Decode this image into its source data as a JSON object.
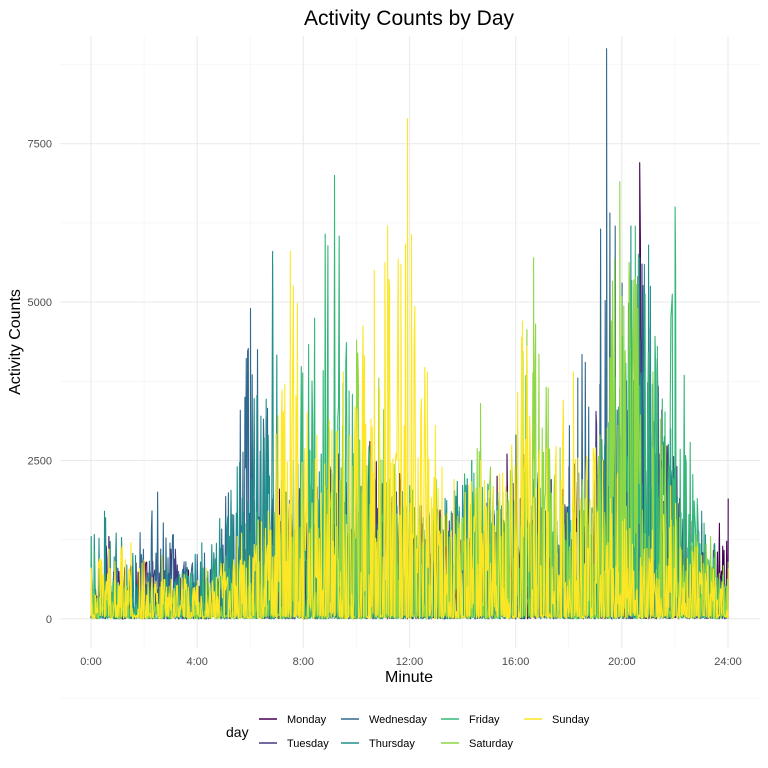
{
  "chart_data": {
    "type": "line",
    "title": "Activity Counts by Day",
    "xlabel": "Minute",
    "ylabel": "Activity Counts",
    "xlim": [
      0,
      1440
    ],
    "ylim": [
      -460,
      9200
    ],
    "x_ticks": [
      {
        "value": 0,
        "label": "0:00"
      },
      {
        "value": 240,
        "label": "4:00"
      },
      {
        "value": 480,
        "label": "8:00"
      },
      {
        "value": 720,
        "label": "12:00"
      },
      {
        "value": 960,
        "label": "16:00"
      },
      {
        "value": 1200,
        "label": "20:00"
      },
      {
        "value": 1440,
        "label": "24:00"
      }
    ],
    "y_ticks": [
      {
        "value": 0,
        "label": "0"
      },
      {
        "value": 2500,
        "label": "2500"
      },
      {
        "value": 5000,
        "label": "5000"
      },
      {
        "value": 7500,
        "label": "7500"
      }
    ],
    "grid": true,
    "legend": {
      "title": "day",
      "position": "bottom"
    },
    "series": [
      {
        "name": "Monday",
        "color": "#440154",
        "points": [
          [
            0,
            200
          ],
          [
            40,
            1300
          ],
          [
            120,
            900
          ],
          [
            180,
            1100
          ],
          [
            230,
            700
          ],
          [
            300,
            600
          ],
          [
            360,
            900
          ],
          [
            420,
            2300
          ],
          [
            480,
            1900
          ],
          [
            560,
            2600
          ],
          [
            630,
            2800
          ],
          [
            700,
            2300
          ],
          [
            760,
            1800
          ],
          [
            820,
            2000
          ],
          [
            880,
            1900
          ],
          [
            940,
            2600
          ],
          [
            1000,
            2100
          ],
          [
            1080,
            2400
          ],
          [
            1140,
            2000
          ],
          [
            1180,
            2300
          ],
          [
            1210,
            3200
          ],
          [
            1240,
            7200
          ],
          [
            1260,
            4600
          ],
          [
            1290,
            3300
          ],
          [
            1330,
            1900
          ],
          [
            1380,
            1500
          ],
          [
            1440,
            1900
          ]
        ]
      },
      {
        "name": "Tuesday",
        "color": "#443983",
        "points": [
          [
            0,
            300
          ],
          [
            60,
            800
          ],
          [
            190,
            1100
          ],
          [
            240,
            700
          ],
          [
            310,
            1000
          ],
          [
            380,
            1400
          ],
          [
            430,
            2000
          ],
          [
            490,
            2200
          ],
          [
            560,
            2000
          ],
          [
            620,
            2300
          ],
          [
            690,
            2000
          ],
          [
            750,
            1500
          ],
          [
            840,
            1800
          ],
          [
            910,
            1700
          ],
          [
            970,
            1900
          ],
          [
            1040,
            2200
          ],
          [
            1100,
            2500
          ],
          [
            1150,
            3700
          ],
          [
            1200,
            3900
          ],
          [
            1245,
            5600
          ],
          [
            1280,
            4100
          ],
          [
            1320,
            2600
          ],
          [
            1380,
            1200
          ],
          [
            1440,
            900
          ]
        ]
      },
      {
        "name": "Wednesday",
        "color": "#31688E",
        "points": [
          [
            0,
            500
          ],
          [
            70,
            700
          ],
          [
            150,
            2000
          ],
          [
            210,
            900
          ],
          [
            290,
            1400
          ],
          [
            360,
            4900
          ],
          [
            420,
            2600
          ],
          [
            470,
            1900
          ],
          [
            540,
            2400
          ],
          [
            600,
            2000
          ],
          [
            690,
            1800
          ],
          [
            760,
            2100
          ],
          [
            830,
            1500
          ],
          [
            900,
            1900
          ],
          [
            960,
            2900
          ],
          [
            1040,
            2000
          ],
          [
            1100,
            3800
          ],
          [
            1165,
            9000
          ],
          [
            1200,
            5300
          ],
          [
            1240,
            5700
          ],
          [
            1280,
            4100
          ],
          [
            1330,
            1800
          ],
          [
            1400,
            1000
          ],
          [
            1440,
            800
          ]
        ]
      },
      {
        "name": "Thursday",
        "color": "#21908C",
        "points": [
          [
            0,
            1300
          ],
          [
            30,
            1700
          ],
          [
            100,
            1000
          ],
          [
            170,
            800
          ],
          [
            250,
            1200
          ],
          [
            330,
            2400
          ],
          [
            410,
            5800
          ],
          [
            440,
            2000
          ],
          [
            520,
            2600
          ],
          [
            600,
            2300
          ],
          [
            660,
            2500
          ],
          [
            740,
            1800
          ],
          [
            800,
            1900
          ],
          [
            860,
            2500
          ],
          [
            930,
            2000
          ],
          [
            1000,
            2200
          ],
          [
            1080,
            1800
          ],
          [
            1140,
            2200
          ],
          [
            1180,
            3400
          ],
          [
            1220,
            6200
          ],
          [
            1260,
            5900
          ],
          [
            1310,
            3000
          ],
          [
            1380,
            1700
          ],
          [
            1440,
            700
          ]
        ]
      },
      {
        "name": "Friday",
        "color": "#35B779",
        "points": [
          [
            0,
            1200
          ],
          [
            50,
            600
          ],
          [
            130,
            500
          ],
          [
            200,
            700
          ],
          [
            280,
            900
          ],
          [
            350,
            1500
          ],
          [
            430,
            2200
          ],
          [
            550,
            7000
          ],
          [
            600,
            3200
          ],
          [
            660,
            2500
          ],
          [
            720,
            2100
          ],
          [
            790,
            1600
          ],
          [
            860,
            2500
          ],
          [
            930,
            2000
          ],
          [
            980,
            2300
          ],
          [
            1050,
            1700
          ],
          [
            1110,
            2100
          ],
          [
            1170,
            3100
          ],
          [
            1230,
            6200
          ],
          [
            1280,
            4300
          ],
          [
            1320,
            6500
          ],
          [
            1370,
            1900
          ],
          [
            1440,
            600
          ]
        ]
      },
      {
        "name": "Saturday",
        "color": "#8FD744",
        "points": [
          [
            0,
            400
          ],
          [
            80,
            500
          ],
          [
            160,
            600
          ],
          [
            230,
            400
          ],
          [
            300,
            500
          ],
          [
            380,
            900
          ],
          [
            460,
            1400
          ],
          [
            530,
            2100
          ],
          [
            600,
            4400
          ],
          [
            650,
            3800
          ],
          [
            700,
            2000
          ],
          [
            780,
            2200
          ],
          [
            840,
            1600
          ],
          [
            880,
            3400
          ],
          [
            940,
            2000
          ],
          [
            1000,
            5700
          ],
          [
            1060,
            2700
          ],
          [
            1110,
            2200
          ],
          [
            1150,
            2900
          ],
          [
            1195,
            6900
          ],
          [
            1230,
            5400
          ],
          [
            1270,
            3900
          ],
          [
            1330,
            1600
          ],
          [
            1400,
            1300
          ],
          [
            1440,
            900
          ]
        ]
      },
      {
        "name": "Sunday",
        "color": "#FDE725",
        "points": [
          [
            0,
            800
          ],
          [
            40,
            1100
          ],
          [
            90,
            1200
          ],
          [
            160,
            1000
          ],
          [
            210,
            700
          ],
          [
            260,
            800
          ],
          [
            330,
            1300
          ],
          [
            400,
            1700
          ],
          [
            450,
            5800
          ],
          [
            510,
            2900
          ],
          [
            570,
            3900
          ],
          [
            640,
            5500
          ],
          [
            670,
            6200
          ],
          [
            700,
            5600
          ],
          [
            715,
            7900
          ],
          [
            760,
            3900
          ],
          [
            820,
            2200
          ],
          [
            880,
            2500
          ],
          [
            930,
            2300
          ],
          [
            975,
            4700
          ],
          [
            1030,
            2700
          ],
          [
            1090,
            3900
          ],
          [
            1140,
            2700
          ],
          [
            1190,
            2300
          ],
          [
            1250,
            1100
          ],
          [
            1310,
            2100
          ],
          [
            1380,
            1000
          ],
          [
            1440,
            800
          ]
        ]
      }
    ]
  }
}
